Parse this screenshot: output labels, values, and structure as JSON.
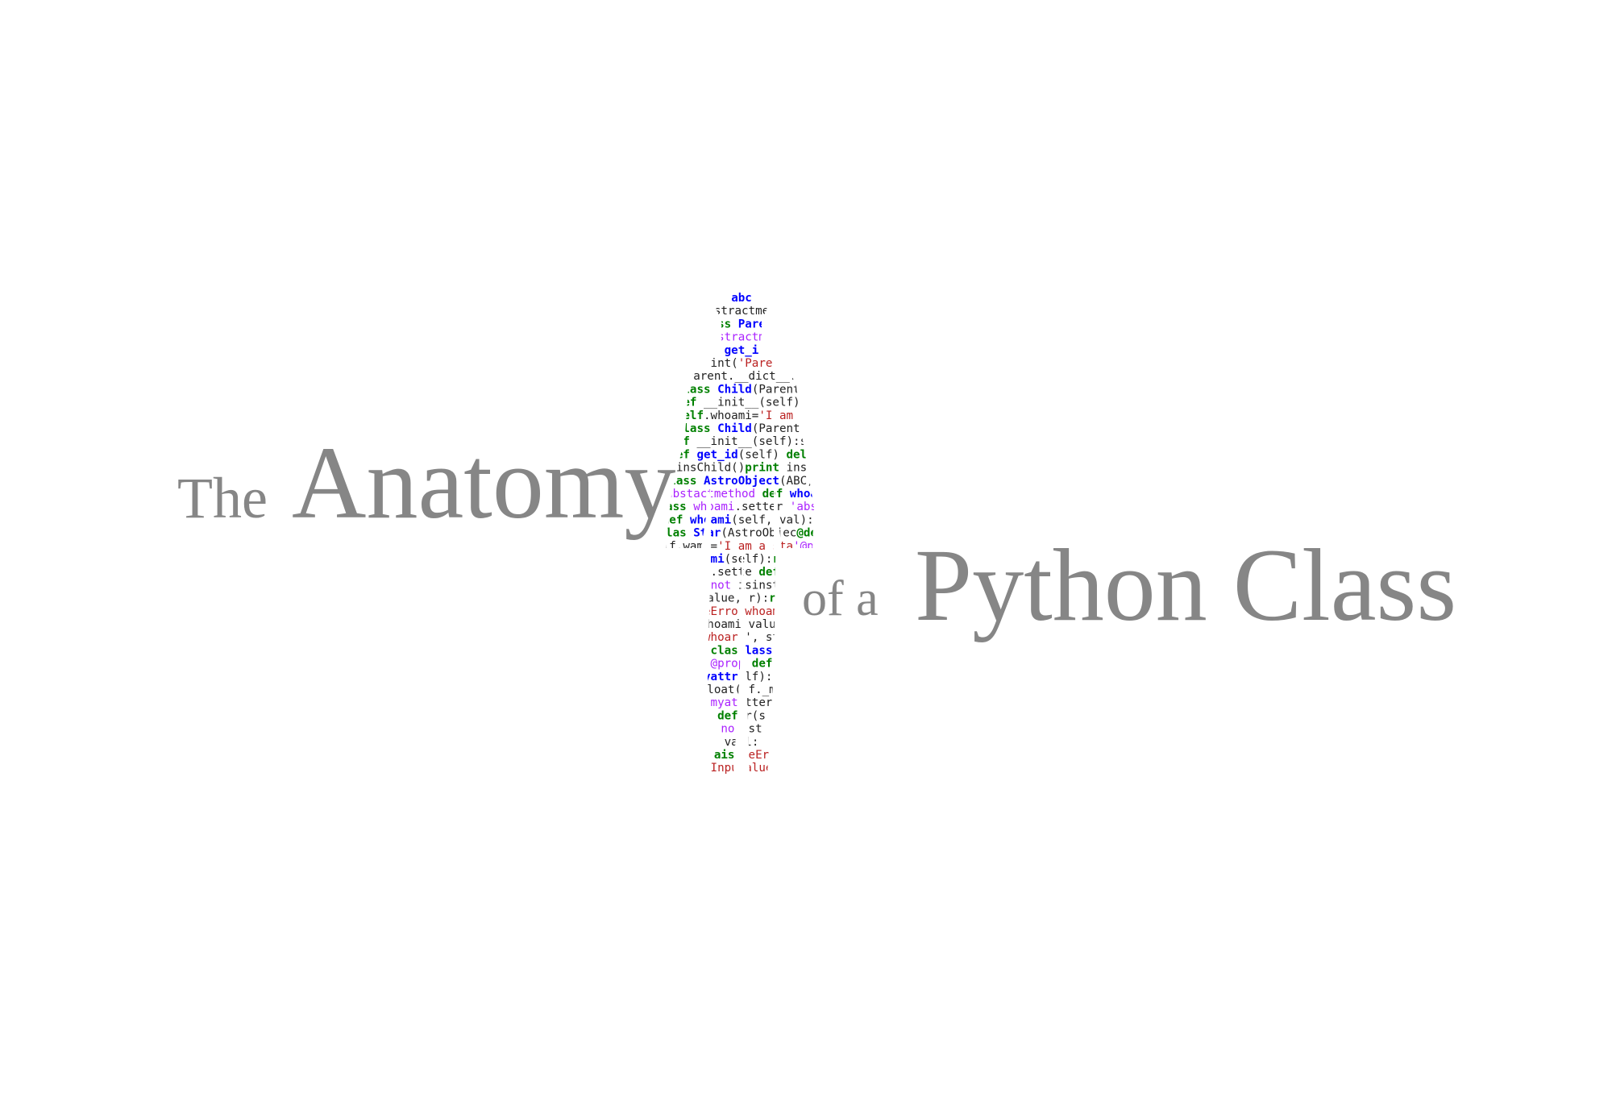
{
  "title": {
    "word_the": "The",
    "word_anatomy": "Anatomy",
    "word_of_a": "of a",
    "word_python_class": "Python Class",
    "color": "#868686"
  },
  "figure": {
    "kind": "code-text-silhouette",
    "shape": "person-silhouette",
    "colors": {
      "keyword": "#008000",
      "classname": "#0000ff",
      "decorator": "#aa22ff",
      "string": "#ba2121",
      "plain": "#222222"
    },
    "code_lines": [
      [
        [
          "abc",
          "c"
        ]
      ],
      [
        [
          "stractme",
          "p"
        ]
      ],
      [
        [
          "ss ",
          "k"
        ],
        [
          "Pare",
          "c"
        ]
      ],
      [
        [
          "stractm",
          "d"
        ]
      ],
      [
        [
          "get_i",
          "c"
        ]
      ],
      [
        [
          "int(",
          "p"
        ],
        [
          "'Pare",
          "s"
        ]
      ],
      [
        [
          "Parent.__dict__.",
          "p"
        ]
      ],
      [
        [
          "class ",
          "k"
        ],
        [
          "Child",
          "c"
        ],
        [
          "(Parent)",
          "p"
        ]
      ],
      [
        [
          "def ",
          "k"
        ],
        [
          "__init__(self):",
          "p"
        ]
      ],
      [
        [
          "self",
          "k"
        ],
        [
          ".whoami=",
          "p"
        ],
        [
          "'I am a",
          "s"
        ]
      ],
      [
        [
          "class ",
          "k"
        ],
        [
          "Child",
          "c"
        ],
        [
          "(Parent)",
          "p"
        ]
      ],
      [
        [
          "def ",
          "k"
        ],
        [
          "__init__(self):se",
          "p"
        ]
      ],
      [
        [
          "def ",
          "k"
        ],
        [
          "get_id",
          "c"
        ],
        [
          "(self) ",
          "p"
        ],
        [
          "deli",
          "k"
        ]
      ],
      [
        [
          "ins",
          "p"
        ],
        [
          "Child()",
          "p"
        ],
        [
          "print",
          "k"
        ],
        [
          " ins",
          "p"
        ]
      ],
      [
        [
          "class ",
          "k"
        ],
        [
          "AstroObject",
          "c"
        ],
        [
          "(ABC):",
          "p"
        ]
      ],
      [
        [
          "abst",
          "d"
        ],
        [
          "actmethod ",
          "d"
        ],
        [
          "def ",
          "k"
        ],
        [
          "whoa",
          "c"
        ]
      ],
      [
        [
          "pass ",
          "k"
        ],
        [
          "whoami",
          "d"
        ],
        [
          ".setter ",
          "p"
        ],
        [
          "'absv",
          "d"
        ]
      ],
      [
        [
          "def ",
          "k"
        ],
        [
          "whoami",
          "c"
        ],
        [
          "(self, val",
          "p"
        ],
        [
          "):p",
          "p"
        ]
      ],
      [
        [
          "clas ",
          "k"
        ],
        [
          "Star",
          "c"
        ],
        [
          "(AstroObjec",
          "p"
        ],
        [
          "@def",
          "k"
        ]
      ],
      [
        [
          "self.w",
          "p"
        ],
        [
          "ami=",
          "p"
        ],
        [
          "'I am a sta",
          "s"
        ],
        [
          "'@prop",
          "d"
        ]
      ],
      [
        [
          "def ",
          "k"
        ],
        [
          "whoami",
          "c"
        ],
        [
          "(self):",
          "p"
        ],
        [
          "retu",
          "k"
        ],
        [
          "  sel",
          "p"
        ]
      ],
      [
        [
          "@wh",
          "d"
        ],
        [
          "..sette",
          "p"
        ],
        [
          " def ",
          "k"
        ],
        [
          "wh",
          "c"
        ]
      ],
      [
        [
          "f ",
          "k"
        ],
        [
          "not",
          "d"
        ],
        [
          "  isinsta",
          "p"
        ]
      ],
      [
        [
          "value,",
          "p"
        ],
        [
          " r):",
          "p"
        ],
        [
          "ra",
          "k"
        ]
      ],
      [
        [
          "eErro",
          "s"
        ],
        [
          "  whoam",
          "s"
        ]
      ],
      [
        [
          "whoami",
          "p"
        ],
        [
          "  value",
          "p"
        ]
      ],
      [
        [
          "whoar",
          "s"
        ],
        [
          "  ', st",
          "p"
        ]
      ],
      [
        [
          "clas",
          "k"
        ],
        [
          "   lass",
          "c"
        ]
      ],
      [
        [
          "@prop",
          "d"
        ],
        [
          "  def",
          "k"
        ]
      ],
      [
        [
          "myattr",
          "c"
        ],
        [
          " lf):",
          "p"
        ],
        [
          "re",
          "k"
        ]
      ],
      [
        [
          "float(",
          "p"
        ],
        [
          " f._my",
          "p"
        ]
      ],
      [
        [
          "myat",
          "d"
        ],
        [
          "   tter",
          "p"
        ]
      ],
      [
        [
          "def",
          "k"
        ],
        [
          "    r(s",
          "p"
        ]
      ],
      [
        [
          "no",
          "d"
        ],
        [
          "     nst",
          "p"
        ]
      ],
      [
        [
          "va",
          "p"
        ],
        [
          "     l:",
          "p"
        ]
      ],
      [
        [
          "aise",
          "k"
        ],
        [
          "   eEr",
          "s"
        ]
      ],
      [
        [
          "Inpu",
          "s"
        ],
        [
          "   alue",
          "s"
        ]
      ]
    ]
  }
}
